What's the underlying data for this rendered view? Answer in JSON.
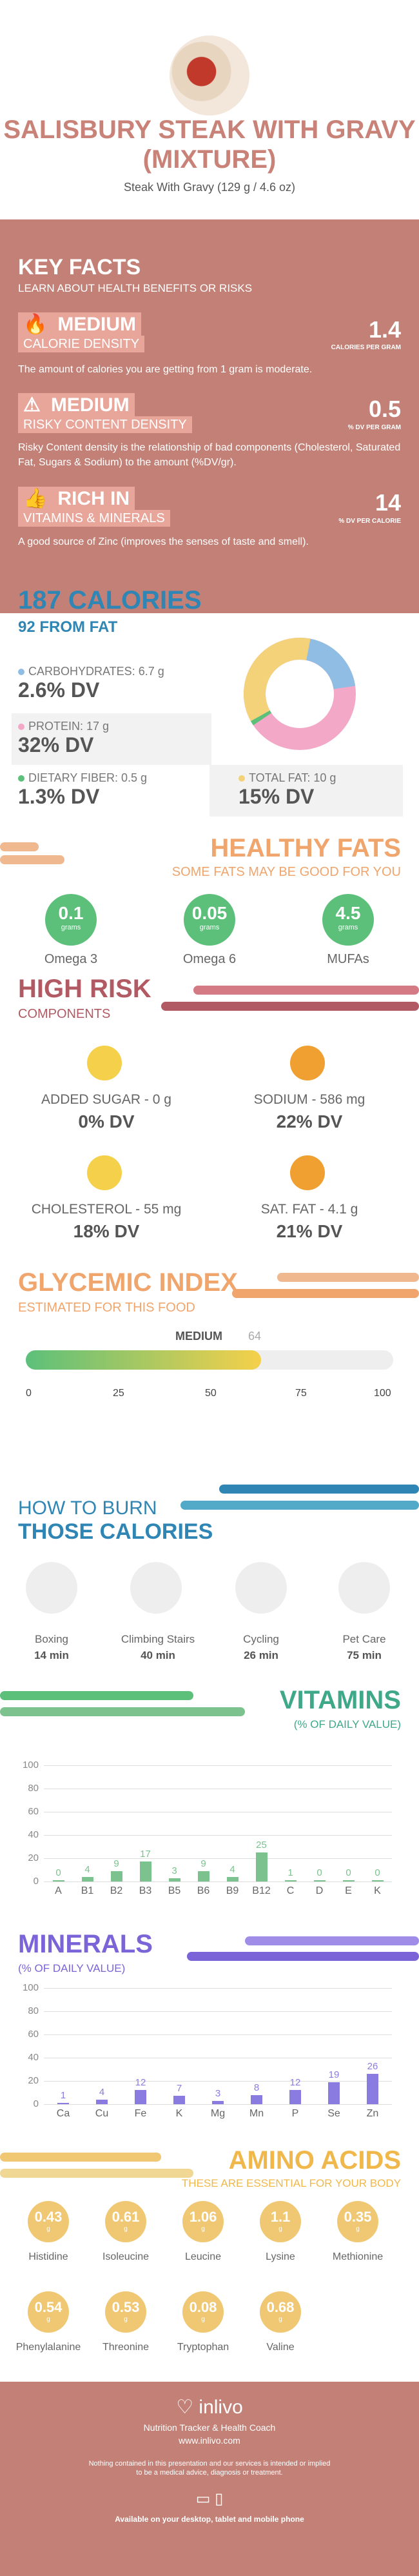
{
  "header": {
    "title": "SALISBURY STEAK WITH GRAVY (MIXTURE)",
    "subtitle": "Steak With Gravy (129 g / 4.6 oz)"
  },
  "key_facts": {
    "title": "KEY FACTS",
    "subtitle": "LEARN ABOUT HEALTH BENEFITS OR RISKS",
    "items": [
      {
        "tag": "MEDIUM",
        "label": "CALORIE DENSITY",
        "value": "1.4",
        "unit": "CALORIES PER GRAM",
        "desc": "The amount of calories you are getting from 1 gram is moderate."
      },
      {
        "tag": "MEDIUM",
        "label": "RISKY CONTENT DENSITY",
        "value": "0.5",
        "unit": "% DV PER GRAM",
        "desc": "Risky Content density is the relationship of bad components (Cholesterol, Saturated Fat, Sugars & Sodium) to the amount (%DV/gr)."
      },
      {
        "tag": "RICH  IN",
        "label": "VITAMINS & MINERALS",
        "value": "14",
        "unit": "% DV PER CALORIE",
        "desc": "A good source of Zinc (improves the senses of taste and smell)."
      }
    ]
  },
  "calories": {
    "title": "187 CALORIES",
    "subtitle": "92 FROM FAT",
    "carbs": {
      "label": "CARBOHYDRATES: 6.7 g",
      "dv": "2.6% DV",
      "color": "#8fbde3"
    },
    "protein": {
      "label": "PROTEIN: 17 g",
      "dv": "32% DV",
      "color": "#f4a8c8"
    },
    "fiber": {
      "label": "DIETARY FIBER: 0.5 g",
      "dv": "1.3% DV",
      "color": "#5cc07a"
    },
    "fat": {
      "label": "TOTAL FAT: 10 g",
      "dv": "15% DV",
      "color": "#f4d27a"
    }
  },
  "healthy_fats": {
    "title": "HEALTHY FATS",
    "subtitle": "SOME FATS MAY BE GOOD FOR YOU",
    "items": [
      {
        "v": "0.1",
        "u": "grams",
        "name": "Omega 3"
      },
      {
        "v": "0.05",
        "u": "grams",
        "name": "Omega 6"
      },
      {
        "v": "4.5",
        "u": "grams",
        "name": "MUFAs"
      }
    ]
  },
  "high_risk": {
    "title": "HIGH RISK",
    "subtitle": "COMPONENTS",
    "items": [
      {
        "label": "ADDED SUGAR - 0 g",
        "dv": "0% DV"
      },
      {
        "label": "SODIUM - 586 mg",
        "dv": "22% DV"
      },
      {
        "label": "CHOLESTEROL - 55 mg",
        "dv": "18% DV"
      },
      {
        "label": "SAT. FAT - 4.1 g",
        "dv": "21% DV"
      }
    ]
  },
  "glycemic": {
    "title": "GLYCEMIC INDEX",
    "subtitle": "ESTIMATED FOR THIS FOOD",
    "level": "MEDIUM",
    "value": "64",
    "ticks": [
      "0",
      "25",
      "50",
      "75",
      "100"
    ]
  },
  "burn": {
    "title1": "HOW TO BURN",
    "title2": "THOSE CALORIES",
    "items": [
      {
        "name": "Boxing",
        "time": "14 min"
      },
      {
        "name": "Climbing Stairs",
        "time": "40 min"
      },
      {
        "name": "Cycling",
        "time": "26 min"
      },
      {
        "name": "Pet Care",
        "time": "75 min"
      }
    ]
  },
  "vitamins": {
    "title": "VITAMINS",
    "subtitle": "(% OF DAILY VALUE)",
    "chart_data": {
      "type": "bar",
      "categories": [
        "A",
        "B1",
        "B2",
        "B3",
        "B5",
        "B6",
        "B9",
        "B12",
        "C",
        "D",
        "E",
        "K"
      ],
      "values": [
        0,
        4,
        9,
        17,
        3,
        9,
        4,
        25,
        1,
        0,
        0,
        0
      ],
      "ylim": [
        0,
        100
      ],
      "yticks": [
        "0",
        "20",
        "40",
        "60",
        "80",
        "100"
      ]
    }
  },
  "minerals": {
    "title": "MINERALS",
    "subtitle": "(% OF DAILY VALUE)",
    "chart_data": {
      "type": "bar",
      "categories": [
        "Ca",
        "Cu",
        "Fe",
        "K",
        "Mg",
        "Mn",
        "P",
        "Se",
        "Zn"
      ],
      "values": [
        1,
        4,
        12,
        7,
        3,
        8,
        12,
        19,
        26
      ],
      "ylim": [
        0,
        100
      ],
      "yticks": [
        "0",
        "20",
        "40",
        "60",
        "80",
        "100"
      ]
    }
  },
  "amino": {
    "title": "AMINO ACIDS",
    "subtitle": "THESE ARE ESSENTIAL FOR YOUR BODY",
    "items": [
      {
        "v": "0.43",
        "u": "g",
        "name": "Histidine"
      },
      {
        "v": "0.61",
        "u": "g",
        "name": "Isoleucine"
      },
      {
        "v": "1.06",
        "u": "g",
        "name": "Leucine"
      },
      {
        "v": "1.1",
        "u": "g",
        "name": "Lysine"
      },
      {
        "v": "0.35",
        "u": "g",
        "name": "Methionine"
      },
      {
        "v": "0.54",
        "u": "g",
        "name": "Phenylalanine"
      },
      {
        "v": "0.53",
        "u": "g",
        "name": "Threonine"
      },
      {
        "v": "0.08",
        "u": "g",
        "name": "Tryptophan"
      },
      {
        "v": "0.68",
        "u": "g",
        "name": "Valine"
      }
    ]
  },
  "footer": {
    "brand": "inlivo",
    "tagline": "Nutrition Tracker & Health Coach",
    "url": "www.inlivo.com",
    "disclaimer1": "Nothing contained in this presentation and our services is intended or implied",
    "disclaimer2": "to be a medical advice, diagnosis or treatment.",
    "available": "Available on your desktop, tablet and mobile phone"
  }
}
